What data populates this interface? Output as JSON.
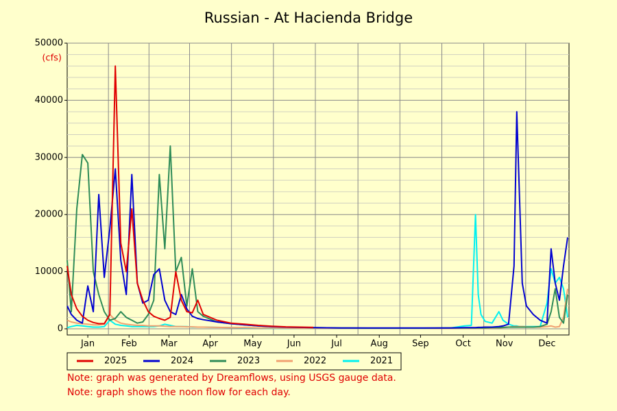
{
  "chart_data": {
    "type": "line",
    "title": "Russian - At Hacienda Bridge",
    "y_unit": "(cfs)",
    "x": [
      1,
      4,
      8,
      12,
      16,
      20,
      24,
      28,
      32,
      36,
      40,
      44,
      48,
      52,
      56,
      60,
      64,
      68,
      72,
      76,
      80,
      84,
      88,
      92,
      96,
      100,
      110,
      120,
      130,
      140,
      150,
      160,
      170,
      180,
      200,
      220,
      240,
      260,
      280,
      290,
      295,
      298,
      300,
      302,
      305,
      310,
      315,
      318,
      322,
      326,
      328,
      330,
      332,
      335,
      340,
      345,
      350,
      353,
      356,
      359,
      362,
      365
    ],
    "xlim": [
      1,
      366
    ],
    "xticks": [
      {
        "value": 16,
        "label": "Jan"
      },
      {
        "value": 46,
        "label": "Feb"
      },
      {
        "value": 75,
        "label": "Mar"
      },
      {
        "value": 105,
        "label": "Apr"
      },
      {
        "value": 136,
        "label": "May"
      },
      {
        "value": 166,
        "label": "Jun"
      },
      {
        "value": 197,
        "label": "Jul"
      },
      {
        "value": 228,
        "label": "Aug"
      },
      {
        "value": 258,
        "label": "Sep"
      },
      {
        "value": 289,
        "label": "Oct"
      },
      {
        "value": 319,
        "label": "Nov"
      },
      {
        "value": 350,
        "label": "Dec"
      }
    ],
    "ylim": [
      0,
      50000
    ],
    "yticks": [
      0,
      10000,
      20000,
      30000,
      40000,
      50000
    ],
    "grid": true,
    "series": [
      {
        "name": "2025",
        "color": "#e00000",
        "values": [
          11000,
          6000,
          3500,
          2200,
          1500,
          1100,
          900,
          900,
          2500,
          46000,
          15000,
          10000,
          21000,
          8000,
          5000,
          3000,
          2200,
          1800,
          1500,
          2000,
          10000,
          5000,
          3000,
          2800,
          5000,
          2500,
          1500,
          1000,
          800,
          600,
          450,
          350,
          300,
          250,
          null,
          null,
          null,
          null,
          null,
          null,
          null,
          null,
          null,
          null,
          null,
          null,
          null,
          null,
          null,
          null,
          null,
          null,
          null,
          null,
          null,
          null,
          null,
          null,
          null,
          null,
          null,
          null
        ]
      },
      {
        "name": "2024",
        "color": "#0000d0",
        "values": [
          4000,
          2500,
          1500,
          1000,
          7500,
          3000,
          23500,
          9000,
          17500,
          28000,
          12000,
          6000,
          27000,
          8000,
          4500,
          5000,
          9500,
          10500,
          5000,
          3000,
          2500,
          6000,
          3500,
          2200,
          1800,
          1600,
          1200,
          900,
          700,
          500,
          400,
          300,
          250,
          200,
          150,
          150,
          150,
          150,
          150,
          200,
          200,
          200,
          250,
          250,
          300,
          300,
          400,
          500,
          800,
          11000,
          38000,
          23000,
          8000,
          4000,
          2500,
          1500,
          1000,
          14000,
          8000,
          5000,
          11000,
          16000
        ]
      },
      {
        "name": "2023",
        "color": "#2e8b57",
        "values": [
          12000,
          3000,
          21000,
          30500,
          29000,
          10000,
          6000,
          3000,
          1500,
          1800,
          3000,
          2000,
          1500,
          1000,
          1200,
          2500,
          5000,
          27000,
          14000,
          32000,
          10000,
          12500,
          4000,
          10500,
          3000,
          2200,
          1200,
          900,
          700,
          500,
          400,
          300,
          250,
          200,
          150,
          120,
          120,
          120,
          150,
          150,
          150,
          150,
          150,
          150,
          150,
          200,
          200,
          250,
          300,
          300,
          300,
          300,
          300,
          300,
          300,
          400,
          800,
          3000,
          7000,
          2000,
          1000,
          6000
        ]
      },
      {
        "name": "2022",
        "color": "#f0a070",
        "values": [
          1500,
          1200,
          1000,
          900,
          800,
          700,
          700,
          800,
          2500,
          1500,
          1000,
          800,
          700,
          600,
          600,
          500,
          500,
          500,
          450,
          400,
          400,
          400,
          350,
          350,
          300,
          300,
          250,
          200,
          200,
          150,
          150,
          120,
          100,
          100,
          80,
          80,
          80,
          80,
          100,
          100,
          100,
          100,
          100,
          100,
          100,
          120,
          150,
          200,
          300,
          400,
          400,
          400,
          400,
          350,
          300,
          300,
          400,
          500,
          300,
          400,
          2000,
          7000
        ]
      },
      {
        "name": "2021",
        "color": "#00f0f0",
        "values": [
          200,
          400,
          600,
          500,
          400,
          300,
          300,
          400,
          1500,
          800,
          600,
          500,
          400,
          400,
          400,
          400,
          400,
          500,
          800,
          600,
          400,
          400,
          400,
          300,
          300,
          300,
          250,
          200,
          150,
          120,
          100,
          80,
          80,
          80,
          80,
          80,
          80,
          100,
          150,
          500,
          600,
          20000,
          6000,
          2500,
          1300,
          1000,
          3000,
          1500,
          800,
          500,
          500,
          400,
          400,
          400,
          400,
          400,
          4500,
          10500,
          8000,
          9000,
          7000,
          2000
        ]
      }
    ],
    "notes": [
      "Note: graph was generated by Dreamflows, using USGS gauge data.",
      "Note: graph shows the noon flow for each day."
    ]
  }
}
